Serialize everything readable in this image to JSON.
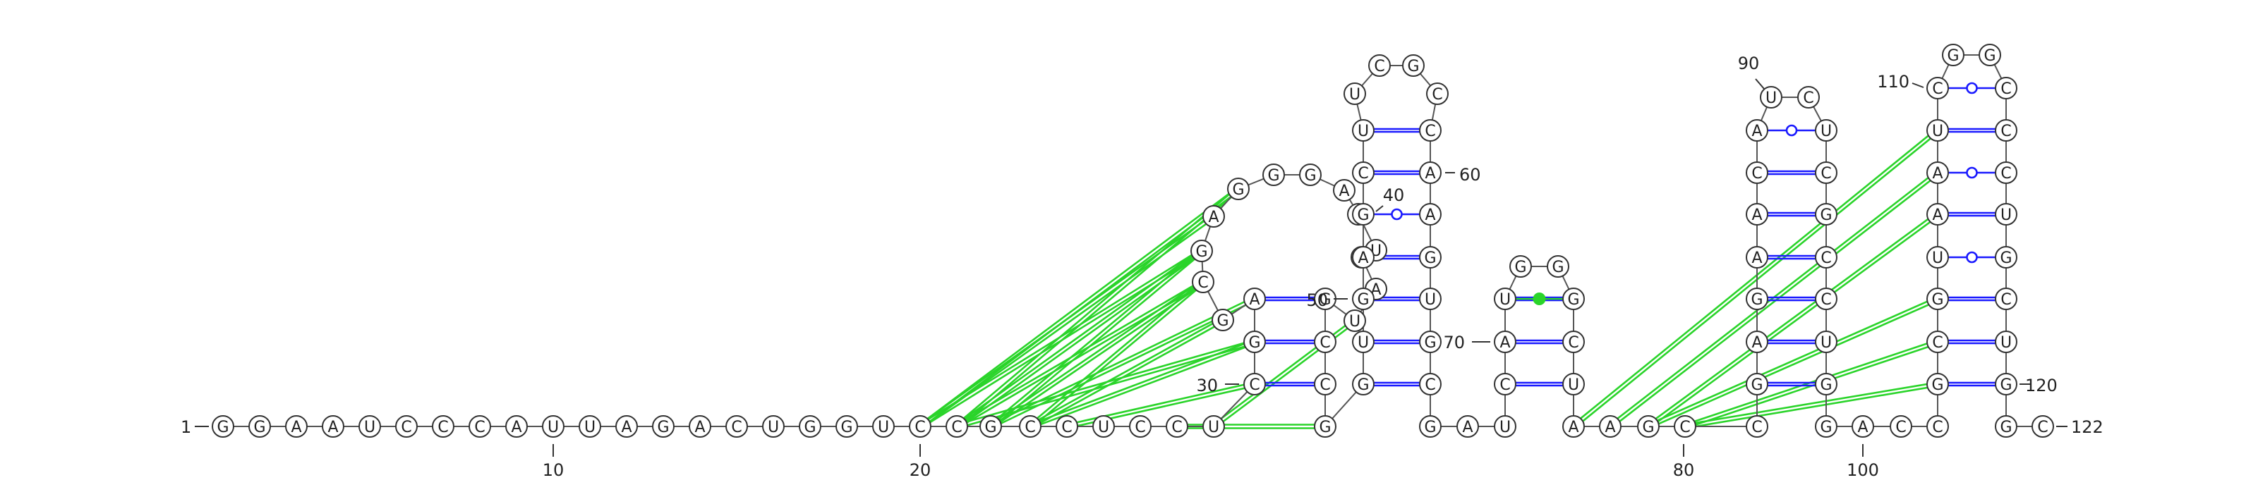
{
  "structure": {
    "sequence": "GGAAUCCCAUUAGACUGGUCCGCCUCCUCGAGCGAGGGAUUCAUGCCGGUGAGCUUCGCCAAGUGCGAUCAUGGGCUAAGCCGAGAACAUCUCGCCUGGACCGCGUAAUCGGCCCUGCUGGC",
    "length": 122,
    "position_labels": [
      {
        "n": 1,
        "text": "1"
      },
      {
        "n": 10,
        "text": "10"
      },
      {
        "n": 20,
        "text": "20"
      },
      {
        "n": 30,
        "text": "30"
      },
      {
        "n": 40,
        "text": "40"
      },
      {
        "n": 50,
        "text": "50"
      },
      {
        "n": 60,
        "text": "60"
      },
      {
        "n": 70,
        "text": "70"
      },
      {
        "n": 80,
        "text": "80"
      },
      {
        "n": 90,
        "text": "90"
      },
      {
        "n": 100,
        "text": "100"
      },
      {
        "n": 110,
        "text": "110"
      },
      {
        "n": 120,
        "text": "120"
      },
      {
        "n": 122,
        "text": "122"
      }
    ]
  },
  "colors": {
    "canonical_pair": "#1a1aff",
    "gu_pair": "#1a1aff",
    "pseudoknot_pair": "#2ad42a",
    "nucleotide_outline": "#333333"
  }
}
